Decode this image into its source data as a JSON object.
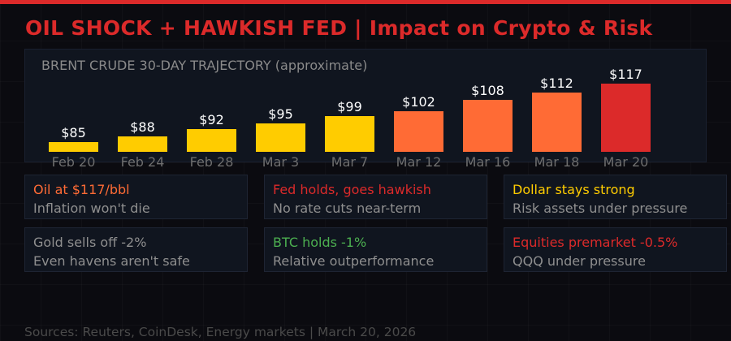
{
  "header": {
    "title": "OIL SHOCK + HAWKISH FED  |  Impact on Crypto & Risk",
    "accent_color": "#dc2a2a"
  },
  "chart_data": {
    "type": "bar",
    "title": "BRENT CRUDE 30-DAY TRAJECTORY  (approximate)",
    "xlabel": "",
    "ylabel": "",
    "categories": [
      "Feb 20",
      "Feb 24",
      "Feb 28",
      "Mar 3",
      "Mar 7",
      "Mar 12",
      "Mar 16",
      "Mar 18",
      "Mar 20"
    ],
    "values": [
      85,
      88,
      92,
      95,
      99,
      102,
      108,
      112,
      117
    ],
    "value_labels": [
      "$85",
      "$88",
      "$92",
      "$95",
      "$99",
      "$102",
      "$108",
      "$112",
      "$117"
    ],
    "colors": [
      "#ffcc00",
      "#ffcc00",
      "#ffcc00",
      "#ffcc00",
      "#ffcc00",
      "#ff6b35",
      "#ff6b35",
      "#ff6b35",
      "#dc2a2a"
    ],
    "grid": false,
    "legend": "none"
  },
  "cards": [
    {
      "headline": "Oil at $117/bbl",
      "subtext": "Inflation won't die",
      "color": "#ff6b35"
    },
    {
      "headline": "Fed holds, goes hawkish",
      "subtext": "No rate cuts near-term",
      "color": "#dc2a2a"
    },
    {
      "headline": "Dollar stays strong",
      "subtext": "Risk assets under pressure",
      "color": "#ffcc00"
    },
    {
      "headline": "Gold sells off -2%",
      "subtext": "Even havens aren't safe",
      "color": "#8f8f8f"
    },
    {
      "headline": "BTC holds -1%",
      "subtext": "Relative outperformance",
      "color": "#4caf50"
    },
    {
      "headline": "Equities premarket -0.5%",
      "subtext": "QQQ under pressure",
      "color": "#dc2a2a"
    }
  ],
  "footer": {
    "text": "Sources: Reuters, CoinDesk, Energy markets  |  March 20, 2026"
  }
}
